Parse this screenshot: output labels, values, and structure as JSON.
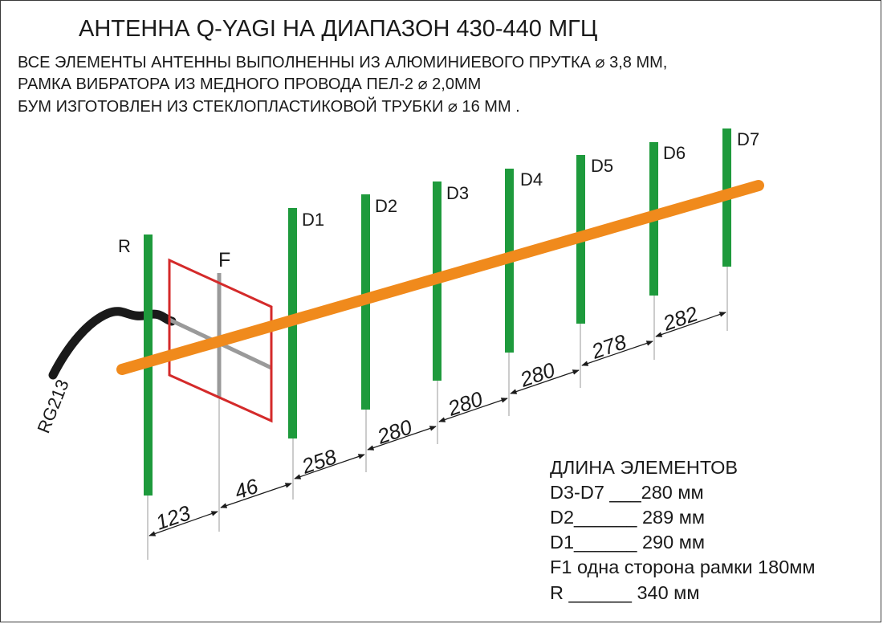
{
  "title": "АНТЕННА Q-YAGI  НА ДИАПАЗОН 430-440 МГЦ",
  "description_lines": [
    "ВСЕ ЭЛЕМЕНТЫ АНТЕННЫ ВЫПОЛНЕННЫ ИЗ АЛЮМИНИЕВОГО ПРУТКА  ⌀ 3,8 ММ,",
    "РАМКА ВИБРАТОРА ИЗ МЕДНОГО  ПРОВОДА ПЕЛ-2  ⌀ 2,0ММ",
    "БУМ ИЗГОТОВЛЕН ИЗ СТЕКЛОПЛАСТИКОВОЙ ТРУБКИ ⌀ 16 ММ ."
  ],
  "cable_label": "RG213",
  "element_labels": {
    "reflector": "R",
    "feed": "F",
    "directors": [
      "D1",
      "D2",
      "D3",
      "D4",
      "D5",
      "D6",
      "D7"
    ]
  },
  "spacings": [
    "123",
    "46",
    "258",
    "280",
    "280",
    "280",
    "278",
    "282"
  ],
  "legend": {
    "heading": "ДЛИНА ЭЛЕМЕНТОВ",
    "rows": [
      "D3-D7 ___280 мм",
      "D2______ 289 мм",
      "D1______ 290 мм",
      "F1 одна сторона рамки 180мм",
      "R ______ 340 мм"
    ]
  },
  "colors": {
    "element": "#1e9a3c",
    "boom": "#f08a1c",
    "frame": "#d42a2a",
    "frame_cross": "#9a9a9a",
    "cable": "#1a1a1a",
    "text": "#1a1a1a"
  }
}
